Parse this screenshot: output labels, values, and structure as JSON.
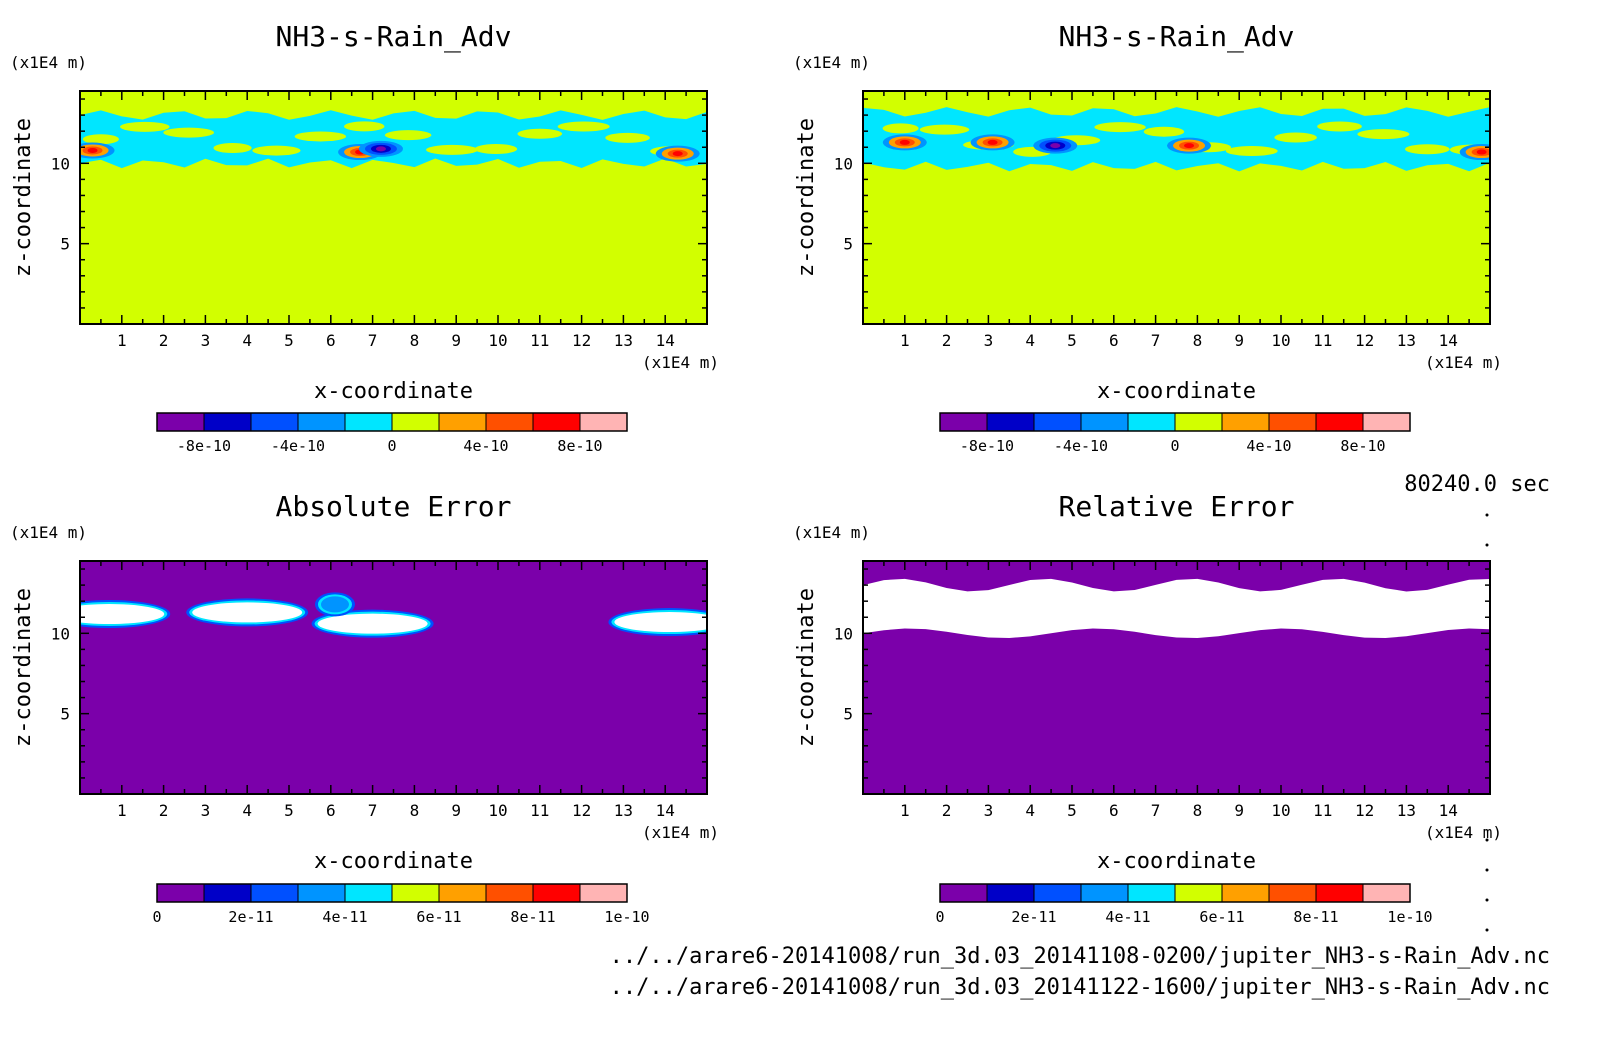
{
  "chart_data": [
    {
      "type": "heatmap",
      "title": "NH3-s-Rain_Adv",
      "xlabel": "x-coordinate",
      "ylabel": "z-coordinate",
      "x_unit": "(x1E4 m)",
      "y_unit": "(x1E4 m)",
      "xlim": [
        0,
        15
      ],
      "ylim": [
        0,
        14.5
      ],
      "x_ticks": [
        "1",
        "2",
        "3",
        "4",
        "5",
        "6",
        "7",
        "8",
        "9",
        "10",
        "11",
        "12",
        "13",
        "14"
      ],
      "y_ticks": [
        "5",
        "10"
      ],
      "colorbar": {
        "colors": [
          "#7b00aa",
          "#0000c8",
          "#0050ff",
          "#0094ff",
          "#00e6ff",
          "#d2ff00",
          "#ffa000",
          "#ff5000",
          "#ff0000",
          "#ffb4b4"
        ],
        "tick_labels": [
          "-8e-10",
          "-4e-10",
          "0",
          "4e-10",
          "8e-10"
        ],
        "tick_levels": [
          1,
          3,
          5,
          7,
          9
        ]
      },
      "background": "#d2ff00",
      "layer_z": [
        10.0,
        13.0
      ],
      "features": [
        {
          "x": 0.3,
          "z": 10.8,
          "v": 8e-10
        },
        {
          "x": 6.7,
          "z": 10.7,
          "v": 8e-10
        },
        {
          "x": 7.2,
          "z": 10.9,
          "v": -8e-10
        },
        {
          "x": 14.3,
          "z": 10.6,
          "v": 8e-10
        }
      ]
    },
    {
      "type": "heatmap",
      "title": "NH3-s-Rain_Adv",
      "xlabel": "x-coordinate",
      "ylabel": "z-coordinate",
      "x_unit": "(x1E4 m)",
      "y_unit": "(x1E4 m)",
      "xlim": [
        0,
        15
      ],
      "ylim": [
        0,
        14.5
      ],
      "x_ticks": [
        "1",
        "2",
        "3",
        "4",
        "5",
        "6",
        "7",
        "8",
        "9",
        "10",
        "11",
        "12",
        "13",
        "14"
      ],
      "y_ticks": [
        "5",
        "10"
      ],
      "colorbar": {
        "colors": [
          "#7b00aa",
          "#0000c8",
          "#0050ff",
          "#0094ff",
          "#00e6ff",
          "#d2ff00",
          "#ffa000",
          "#ff5000",
          "#ff0000",
          "#ffb4b4"
        ],
        "tick_labels": [
          "-8e-10",
          "-4e-10",
          "0",
          "4e-10",
          "8e-10"
        ],
        "tick_levels": [
          1,
          3,
          5,
          7,
          9
        ]
      },
      "background": "#d2ff00",
      "layer_z": [
        9.8,
        13.2
      ],
      "features": [
        {
          "x": 1.0,
          "z": 11.3,
          "v": 8e-10
        },
        {
          "x": 3.1,
          "z": 11.3,
          "v": 8e-10
        },
        {
          "x": 4.6,
          "z": 11.1,
          "v": -8e-10
        },
        {
          "x": 7.8,
          "z": 11.1,
          "v": 8e-10
        },
        {
          "x": 14.8,
          "z": 10.7,
          "v": 8e-10
        }
      ]
    },
    {
      "type": "heatmap",
      "title": "Absolute Error",
      "xlabel": "x-coordinate",
      "ylabel": "z-coordinate",
      "x_unit": "(x1E4 m)",
      "y_unit": "(x1E4 m)",
      "xlim": [
        0,
        15
      ],
      "ylim": [
        0,
        14.5
      ],
      "x_ticks": [
        "1",
        "2",
        "3",
        "4",
        "5",
        "6",
        "7",
        "8",
        "9",
        "10",
        "11",
        "12",
        "13",
        "14"
      ],
      "y_ticks": [
        "5",
        "10"
      ],
      "colorbar": {
        "colors": [
          "#7b00aa",
          "#0000c8",
          "#0050ff",
          "#0094ff",
          "#00e6ff",
          "#d2ff00",
          "#ffa000",
          "#ff5000",
          "#ff0000",
          "#ffb4b4"
        ],
        "tick_labels": [
          "0",
          "2e-11",
          "4e-11",
          "6e-11",
          "8e-11",
          "1e-10"
        ],
        "tick_levels": [
          0,
          2,
          4,
          6,
          8,
          10
        ]
      },
      "background": "#7b00aa",
      "features": [
        {
          "x": 0.7,
          "z": 11.2,
          "v": 1e-10
        },
        {
          "x": 4.0,
          "z": 11.3,
          "v": 1e-10
        },
        {
          "x": 7.0,
          "z": 10.6,
          "v": 1e-10
        },
        {
          "x": 6.1,
          "z": 11.8,
          "v": 4e-11
        },
        {
          "x": 14.1,
          "z": 10.7,
          "v": 1e-10
        }
      ]
    },
    {
      "type": "heatmap",
      "title": "Relative Error",
      "xlabel": "x-coordinate",
      "ylabel": "z-coordinate",
      "x_unit": "(x1E4 m)",
      "y_unit": "(x1E4 m)",
      "xlim": [
        0,
        15
      ],
      "ylim": [
        0,
        14.5
      ],
      "x_ticks": [
        "1",
        "2",
        "3",
        "4",
        "5",
        "6",
        "7",
        "8",
        "9",
        "10",
        "11",
        "12",
        "13",
        "14"
      ],
      "y_ticks": [
        "5",
        "10"
      ],
      "colorbar": {
        "colors": [
          "#7b00aa",
          "#0000c8",
          "#0050ff",
          "#0094ff",
          "#00e6ff",
          "#d2ff00",
          "#ffa000",
          "#ff5000",
          "#ff0000",
          "#ffb4b4"
        ],
        "tick_labels": [
          "0",
          "2e-11",
          "4e-11",
          "6e-11",
          "8e-11",
          "1e-10"
        ],
        "tick_levels": [
          0,
          2,
          4,
          6,
          8,
          10
        ]
      },
      "background": "#7b00aa",
      "layer_z": [
        10.0,
        13.0
      ],
      "features": []
    }
  ],
  "time_label": "80240.0 sec",
  "footer": {
    "line1": "../../arare6-20141008/run_3d.03_20141108-0200/jupiter_NH3-s-Rain_Adv.nc",
    "line2": "../../arare6-20141008/run_3d.03_20141122-1600/jupiter_NH3-s-Rain_Adv.nc"
  }
}
